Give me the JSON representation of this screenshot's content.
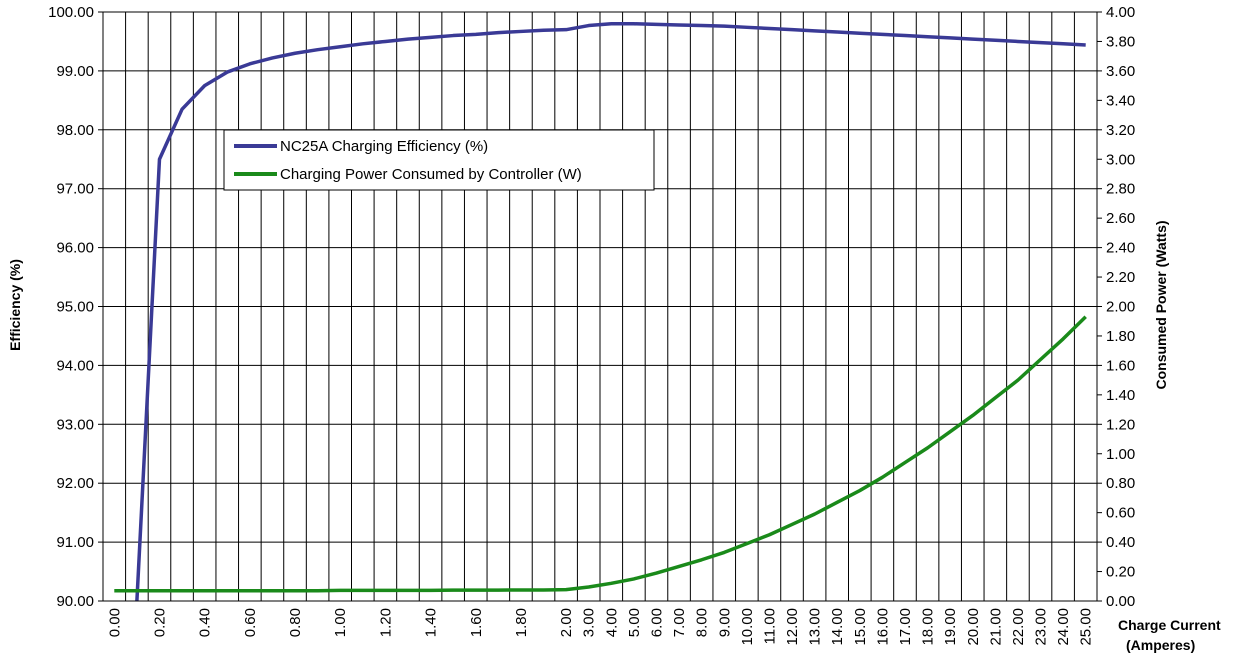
{
  "chart_data": {
    "type": "line",
    "title": "",
    "xlabel": [
      "Charge Current",
      "(Amperes)"
    ],
    "ylabel": "Efficiency (%)",
    "y2label": "Consumed Power (Watts)",
    "grid": true,
    "legend_position": "upper-left",
    "colors": {
      "efficiency": "#3a3a96",
      "power": "#1a8a1a"
    },
    "x_categories": [
      "0.00",
      "0.10",
      "0.20",
      "0.30",
      "0.40",
      "0.50",
      "0.60",
      "0.70",
      "0.80",
      "0.90",
      "1.00",
      "1.10",
      "1.20",
      "1.30",
      "1.40",
      "1.50",
      "1.60",
      "1.70",
      "1.80",
      "1.90",
      "2.00",
      "3.00",
      "4.00",
      "5.00",
      "6.00",
      "7.00",
      "8.00",
      "9.00",
      "10.00",
      "11.00",
      "12.00",
      "13.00",
      "14.00",
      "15.00",
      "16.00",
      "17.00",
      "18.00",
      "19.00",
      "20.00",
      "21.00",
      "22.00",
      "23.00",
      "24.00",
      "25.00"
    ],
    "x_tick_labels": [
      "0.00",
      "0.20",
      "0.40",
      "0.60",
      "0.80",
      "1.00",
      "1.20",
      "1.40",
      "1.60",
      "1.80",
      "2.00",
      "3.00",
      "4.00",
      "5.00",
      "6.00",
      "7.00",
      "8.00",
      "9.00",
      "10.00",
      "11.00",
      "12.00",
      "13.00",
      "14.00",
      "15.00",
      "16.00",
      "17.00",
      "18.00",
      "19.00",
      "20.00",
      "21.00",
      "22.00",
      "23.00",
      "24.00",
      "25.00"
    ],
    "y_ticks": [
      "90.00",
      "91.00",
      "92.00",
      "93.00",
      "94.00",
      "95.00",
      "96.00",
      "97.00",
      "98.00",
      "99.00",
      "100.00"
    ],
    "ylim": [
      90,
      100
    ],
    "y2_ticks": [
      "0.00",
      "0.20",
      "0.40",
      "0.60",
      "0.80",
      "1.00",
      "1.20",
      "1.40",
      "1.60",
      "1.80",
      "2.00",
      "2.20",
      "2.40",
      "2.60",
      "2.80",
      "3.00",
      "3.20",
      "3.40",
      "3.60",
      "3.80",
      "4.00"
    ],
    "y2lim": [
      0,
      4
    ],
    "series": [
      {
        "name": "NC25A Charging Efficiency (%)",
        "axis": "left",
        "values": [
          null,
          90.0,
          97.5,
          98.35,
          98.75,
          98.98,
          99.12,
          99.22,
          99.3,
          99.36,
          99.41,
          99.46,
          99.5,
          99.54,
          99.57,
          99.6,
          99.62,
          99.65,
          99.67,
          99.69,
          99.7,
          99.77,
          99.8,
          99.8,
          99.79,
          99.78,
          99.77,
          99.76,
          99.74,
          99.72,
          99.7,
          99.68,
          99.66,
          99.64,
          99.62,
          99.6,
          99.58,
          99.56,
          99.54,
          99.52,
          99.5,
          99.48,
          99.46,
          99.44
        ]
      },
      {
        "name": "Charging Power Consumed by Controller (W)",
        "axis": "right",
        "values": [
          0.07,
          0.07,
          0.07,
          0.07,
          0.07,
          0.07,
          0.07,
          0.07,
          0.07,
          0.07,
          0.072,
          0.072,
          0.072,
          0.072,
          0.072,
          0.074,
          0.074,
          0.074,
          0.075,
          0.075,
          0.077,
          0.095,
          0.12,
          0.15,
          0.19,
          0.235,
          0.28,
          0.33,
          0.39,
          0.45,
          0.52,
          0.59,
          0.67,
          0.75,
          0.84,
          0.94,
          1.04,
          1.15,
          1.26,
          1.38,
          1.5,
          1.64,
          1.78,
          1.93
        ]
      }
    ]
  }
}
